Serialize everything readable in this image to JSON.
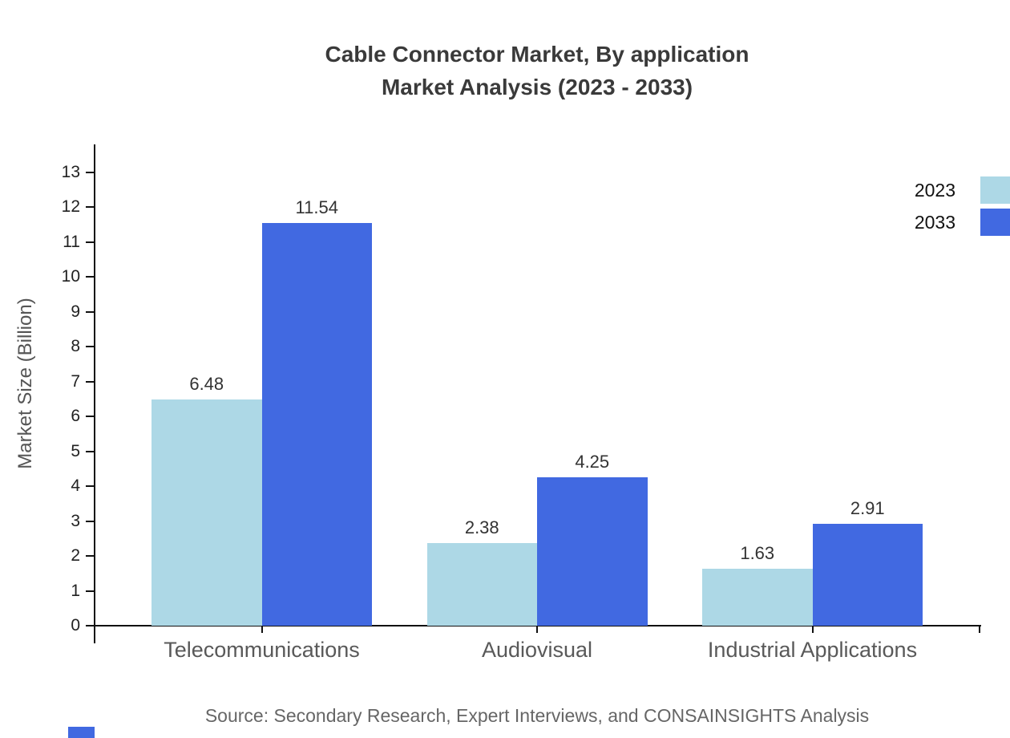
{
  "title": {
    "line1": "Cable Connector Market, By application",
    "line2": "Market Analysis (2023 - 2033)"
  },
  "chart_data": {
    "type": "bar",
    "categories": [
      "Telecommunications",
      "Audiovisual",
      "Industrial Applications"
    ],
    "series": [
      {
        "name": "2023",
        "color": "#add8e6",
        "values": [
          6.48,
          2.38,
          1.63
        ]
      },
      {
        "name": "2033",
        "color": "#4169e1",
        "values": [
          11.54,
          4.25,
          2.91
        ]
      }
    ],
    "xlabel": "",
    "ylabel": "Market Size (Billion)",
    "yticks": [
      0,
      1,
      2,
      3,
      4,
      5,
      6,
      7,
      8,
      9,
      10,
      11,
      12,
      13
    ],
    "ylim": [
      0,
      13.8
    ],
    "grid": false,
    "value_labels": true,
    "legend_position": "top-right"
  },
  "legend": {
    "items": [
      "2023",
      "2033"
    ]
  },
  "source": "Source: Secondary Research, Expert Interviews, and CONSAINSIGHTS Analysis",
  "colors": {
    "title": "#3a3a3a",
    "axis": "#111111",
    "tick_label": "#222222",
    "category_label": "#595959",
    "value_label": "#333333",
    "y_axis_title": "#555555",
    "source": "#666666",
    "series_2023": "#add8e6",
    "series_2033": "#4169e1",
    "logo": "#4169e1"
  }
}
